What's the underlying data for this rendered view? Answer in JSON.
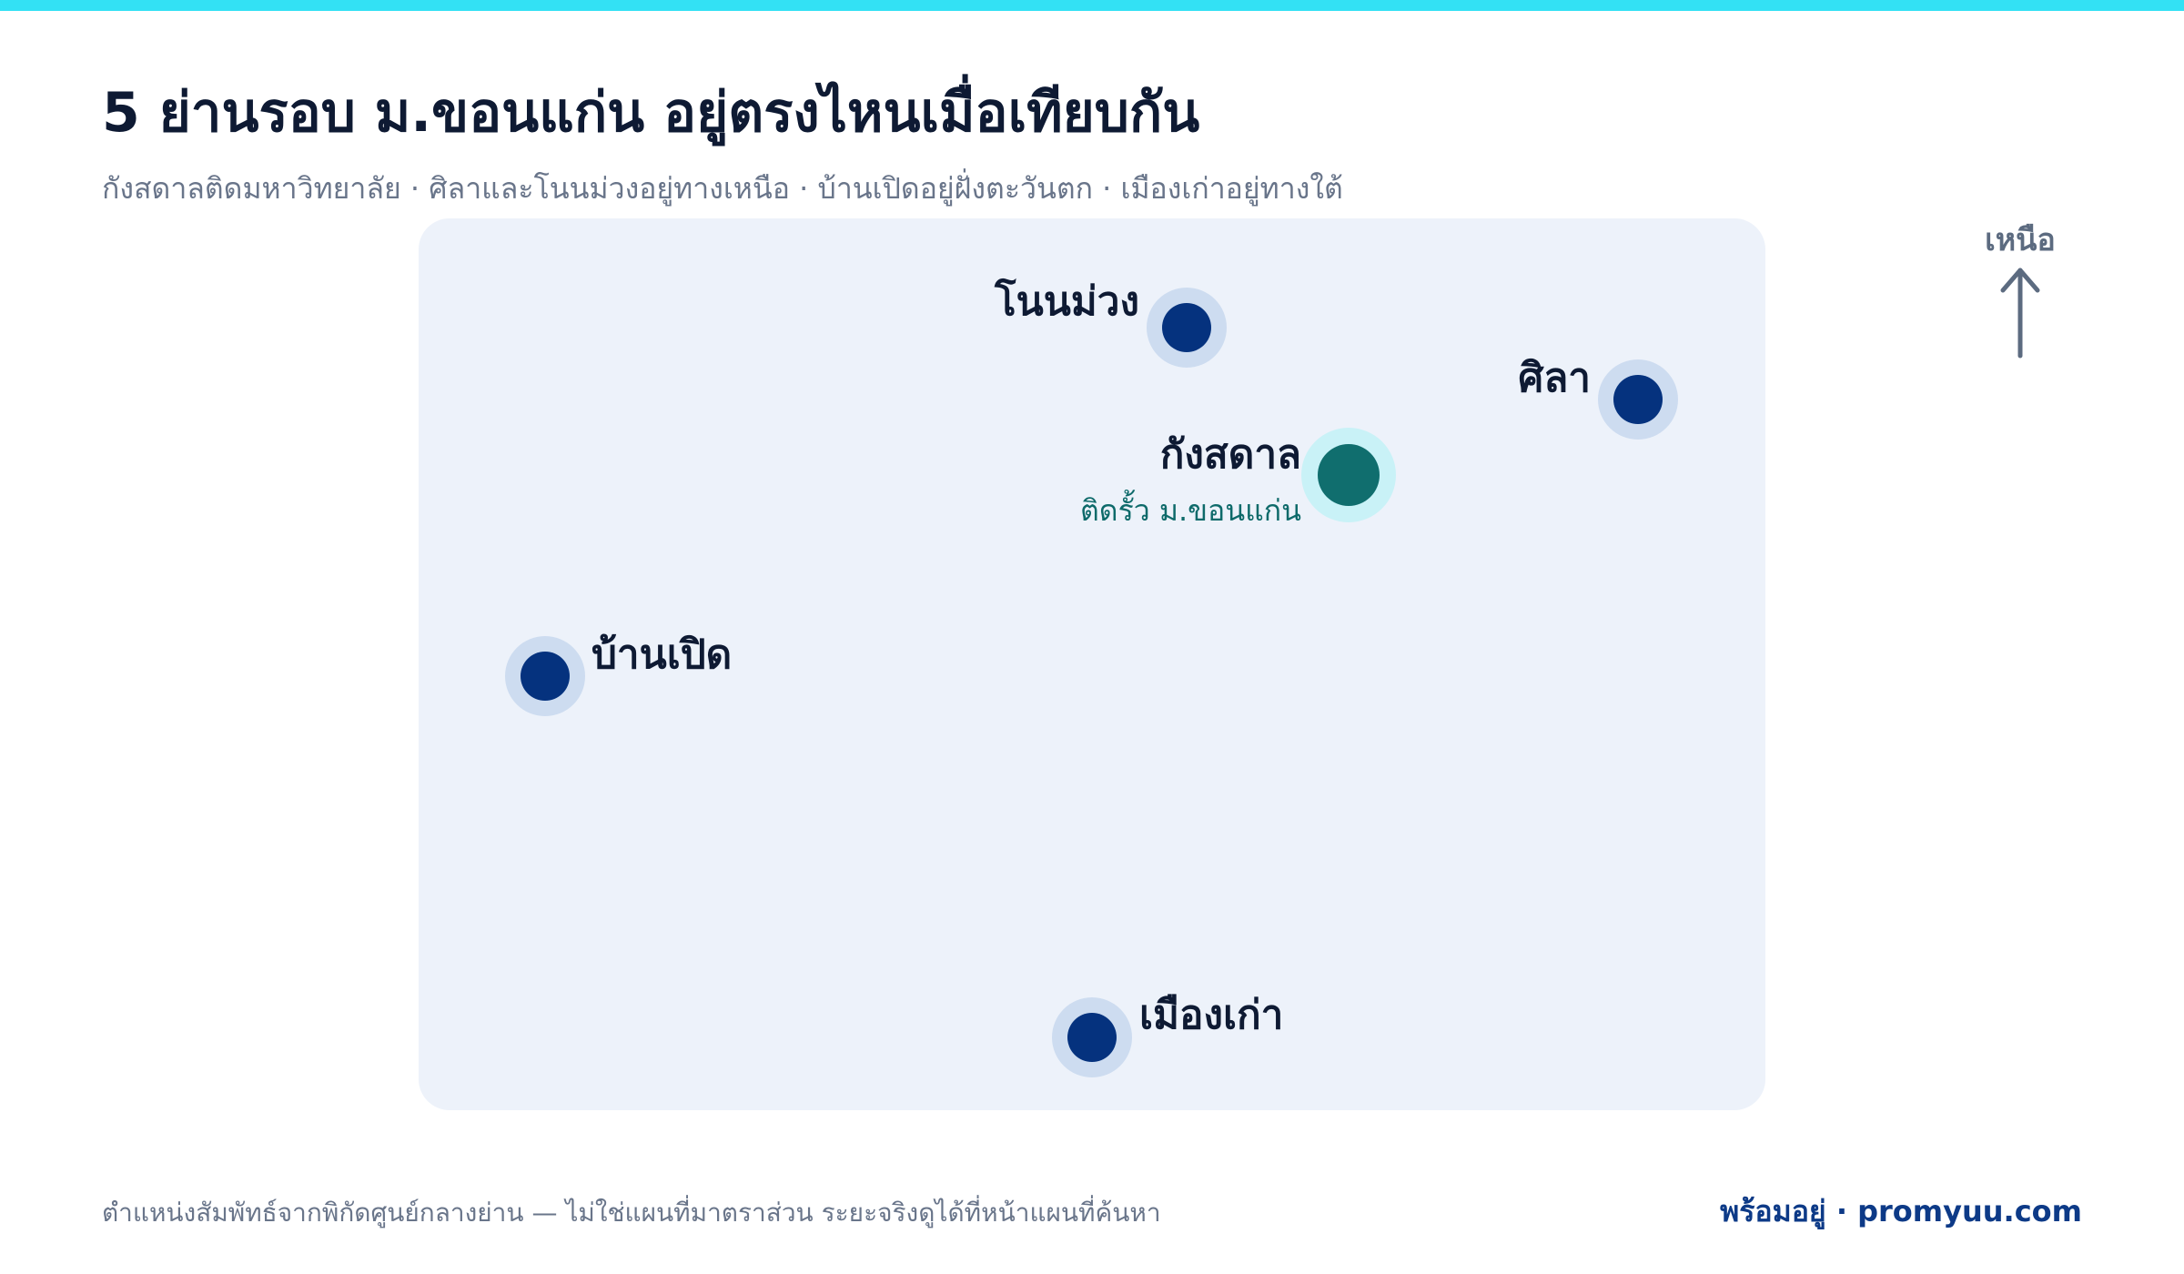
{
  "header": {
    "title": "5 ย่านรอบ ม.ขอนแก่น อยู่ตรงไหนเมื่อเทียบกัน",
    "subtitle": "กังสดาลติดมหาวิทยาลัย · ศิลาและโนนม่วงอยู่ทางเหนือ · บ้านเปิดอยู่ฝั่งตะวันตก · เมืองเก่าอยู่ทางใต้"
  },
  "compass": {
    "label": "เหนือ",
    "icon": "north-arrow-icon"
  },
  "places": {
    "nonmuang": {
      "name": "โนนม่วง"
    },
    "sila": {
      "name": "ศิลา"
    },
    "kangsadan": {
      "name": "กังสดาล",
      "note": "ติดรั้ว ม.ขอนแก่น"
    },
    "banped": {
      "name": "บ้านเปิด"
    },
    "muangkao": {
      "name": "เมืองเก่า"
    }
  },
  "footer": {
    "note": "ตำแหน่งสัมพัทธ์จากพิกัดศูนย์กลางย่าน — ไม่ใช่แผนที่มาตราส่วน ระยะจริงดูได้ที่หน้าแผนที่ค้นหา",
    "brand": "พร้อมอยู่ · promyuu.com"
  },
  "colors": {
    "accent": "#33e1f4",
    "marker": "#05327e",
    "highlight": "#106e6e",
    "panel": "#edf2fa"
  }
}
